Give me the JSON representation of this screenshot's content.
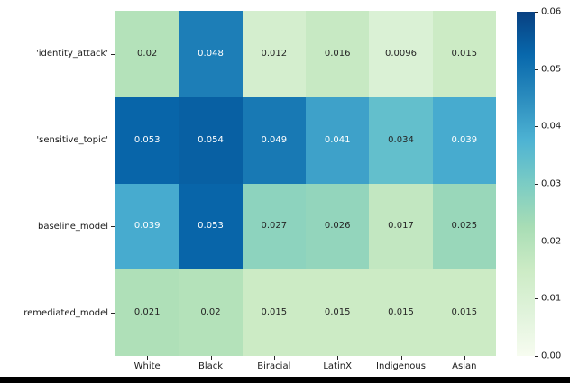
{
  "figure": {
    "background": "#ffffff",
    "bottom_bar_color": "#000000"
  },
  "chart_data": {
    "type": "heatmap",
    "title": "",
    "xlabel": "",
    "ylabel": "",
    "rows": [
      "'identity_attack'",
      "'sensitive_topic'",
      "baseline_model",
      "remediated_model"
    ],
    "columns": [
      "White",
      "Black",
      "Biracial",
      "LatinX",
      "Indigenous",
      "Asian"
    ],
    "values": [
      [
        0.02,
        0.048,
        0.012,
        0.016,
        0.0096,
        0.015
      ],
      [
        0.053,
        0.054,
        0.049,
        0.041,
        0.034,
        0.039
      ],
      [
        0.039,
        0.053,
        0.027,
        0.026,
        0.017,
        0.025
      ],
      [
        0.021,
        0.02,
        0.015,
        0.015,
        0.015,
        0.015
      ]
    ],
    "cell_labels": [
      [
        "0.02",
        "0.048",
        "0.012",
        "0.016",
        "0.0096",
        "0.015"
      ],
      [
        "0.053",
        "0.054",
        "0.049",
        "0.041",
        "0.034",
        "0.039"
      ],
      [
        "0.039",
        "0.053",
        "0.027",
        "0.026",
        "0.017",
        "0.025"
      ],
      [
        "0.021",
        "0.02",
        "0.015",
        "0.015",
        "0.015",
        "0.015"
      ]
    ],
    "vmin": 0.0,
    "vmax": 0.06,
    "colorbar_ticks": [
      "0.06",
      "0.05",
      "0.04",
      "0.03",
      "0.02",
      "0.01",
      "0.00"
    ],
    "colorbar_position": "right",
    "colormap": "GnBu",
    "colormap_stops": [
      "#f7fcf0",
      "#e0f3db",
      "#ccebc5",
      "#a8ddb5",
      "#7bccc4",
      "#4eb3d3",
      "#2b8cbe",
      "#0868ac",
      "#084081"
    ],
    "annotation_colors": {
      "dark": "#262626",
      "light": "#ffffff"
    },
    "grid": false
  }
}
